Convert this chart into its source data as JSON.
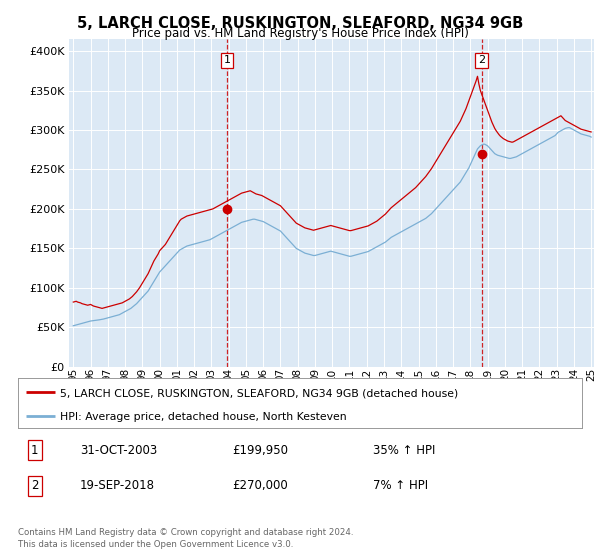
{
  "title": "5, LARCH CLOSE, RUSKINGTON, SLEAFORD, NG34 9GB",
  "subtitle": "Price paid vs. HM Land Registry's House Price Index (HPI)",
  "fig_bg": "#ffffff",
  "plot_bg": "#dce9f5",
  "red_color": "#cc0000",
  "blue_color": "#7bafd4",
  "legend_label1": "5, LARCH CLOSE, RUSKINGTON, SLEAFORD, NG34 9GB (detached house)",
  "legend_label2": "HPI: Average price, detached house, North Kesteven",
  "ann1_date": "31-OCT-2003",
  "ann1_price": "£199,950",
  "ann1_hpi": "35% ↑ HPI",
  "ann2_date": "19-SEP-2018",
  "ann2_price": "£270,000",
  "ann2_hpi": "7% ↑ HPI",
  "footer": "Contains HM Land Registry data © Crown copyright and database right 2024.\nThis data is licensed under the Open Government Licence v3.0.",
  "yticks": [
    0,
    50000,
    100000,
    150000,
    200000,
    250000,
    300000,
    350000,
    400000
  ],
  "ylim": [
    0,
    415000
  ],
  "sale1_month": 107,
  "sale1_y": 199950,
  "sale2_month": 284,
  "sale2_y": 270000,
  "n_months": 361,
  "hpi_monthly": [
    52000,
    52500,
    53000,
    53500,
    54000,
    54500,
    55000,
    55500,
    56000,
    56500,
    57000,
    57500,
    58000,
    58200,
    58500,
    58800,
    59000,
    59200,
    59500,
    59800,
    60000,
    60500,
    61000,
    61500,
    62000,
    62500,
    63000,
    63500,
    64000,
    64500,
    65000,
    65500,
    66000,
    67000,
    68000,
    69000,
    70000,
    71000,
    72000,
    73000,
    74000,
    75500,
    77000,
    78500,
    80000,
    82000,
    84000,
    86000,
    88000,
    90000,
    92000,
    94000,
    96000,
    99000,
    102000,
    105000,
    108000,
    111000,
    114000,
    117000,
    120000,
    122000,
    124000,
    126000,
    128000,
    130000,
    132000,
    134000,
    136000,
    138000,
    140000,
    142000,
    144000,
    146000,
    148000,
    149000,
    150000,
    151000,
    152000,
    153000,
    153500,
    154000,
    154500,
    155000,
    155500,
    156000,
    156500,
    157000,
    157500,
    158000,
    158500,
    159000,
    159500,
    160000,
    160500,
    161000,
    162000,
    163000,
    164000,
    165000,
    166000,
    167000,
    168000,
    169000,
    170000,
    171000,
    172000,
    173000,
    174000,
    175000,
    176000,
    177000,
    178000,
    179000,
    180000,
    181000,
    182000,
    183000,
    183500,
    184000,
    184500,
    185000,
    185500,
    186000,
    186500,
    187000,
    187000,
    186500,
    186000,
    185500,
    185000,
    184500,
    184000,
    183000,
    182000,
    181000,
    180000,
    179000,
    178000,
    177000,
    176000,
    175000,
    174000,
    173000,
    172000,
    170000,
    168000,
    166000,
    164000,
    162000,
    160000,
    158000,
    156000,
    154000,
    152000,
    150000,
    149000,
    148000,
    147000,
    146000,
    145000,
    144000,
    143500,
    143000,
    142500,
    142000,
    141500,
    141000,
    141000,
    141500,
    142000,
    142500,
    143000,
    143500,
    144000,
    144500,
    145000,
    145500,
    146000,
    146500,
    146000,
    145500,
    145000,
    144500,
    144000,
    143500,
    143000,
    142500,
    142000,
    141500,
    141000,
    140500,
    140000,
    140000,
    140500,
    141000,
    141500,
    142000,
    142500,
    143000,
    143500,
    144000,
    144500,
    145000,
    145500,
    146000,
    147000,
    148000,
    149000,
    150000,
    151000,
    152000,
    153000,
    154000,
    155000,
    156000,
    157000,
    158000,
    159500,
    161000,
    162500,
    164000,
    165000,
    166000,
    167000,
    168000,
    169000,
    170000,
    171000,
    172000,
    173000,
    174000,
    175000,
    176000,
    177000,
    178000,
    179000,
    180000,
    181000,
    182000,
    183000,
    184000,
    185000,
    186000,
    187000,
    188000,
    189500,
    191000,
    192500,
    194000,
    196000,
    198000,
    200000,
    202000,
    204000,
    206000,
    208000,
    210000,
    212000,
    214000,
    216000,
    218000,
    220000,
    222000,
    224000,
    226000,
    228000,
    230000,
    232000,
    234000,
    237000,
    240000,
    243000,
    246000,
    249000,
    252000,
    256000,
    260000,
    264000,
    268000,
    272000,
    276000,
    278000,
    280000,
    281000,
    282000,
    282000,
    281000,
    280000,
    278000,
    276000,
    274000,
    272000,
    270000,
    269000,
    268000,
    267500,
    267000,
    266500,
    266000,
    265500,
    265000,
    264500,
    264000,
    264000,
    264500,
    265000,
    265500,
    266000,
    267000,
    268000,
    269000,
    270000,
    271000,
    272000,
    273000,
    274000,
    275000,
    276000,
    277000,
    278000,
    279000,
    280000,
    281000,
    282000,
    283000,
    284000,
    285000,
    286000,
    287000,
    288000,
    289000,
    290000,
    291000,
    292000,
    293000,
    295000,
    297000,
    298000,
    299000,
    300000,
    301000,
    302000,
    302500,
    303000,
    303000,
    302000,
    301000,
    300000,
    299000,
    298000,
    297000,
    296000,
    295000,
    294500,
    294000,
    293500,
    293000,
    292500,
    292000,
    291000
  ],
  "red_monthly": [
    82000,
    82500,
    83000,
    82000,
    81500,
    81000,
    80000,
    79500,
    79000,
    78500,
    78000,
    78500,
    79000,
    78000,
    77000,
    76500,
    76000,
    75500,
    75000,
    74500,
    74000,
    74500,
    75000,
    75500,
    76000,
    76500,
    77000,
    77500,
    78000,
    78500,
    79000,
    79500,
    80000,
    80500,
    81000,
    82000,
    83000,
    84000,
    85000,
    86000,
    87500,
    89000,
    91000,
    93000,
    95000,
    97500,
    100000,
    103000,
    106000,
    109000,
    112000,
    115000,
    118000,
    122000,
    126000,
    130000,
    134000,
    137000,
    140000,
    143000,
    147000,
    149000,
    151000,
    153000,
    155000,
    158000,
    161000,
    164000,
    167000,
    170000,
    173000,
    176000,
    179000,
    182000,
    185000,
    187000,
    188000,
    189000,
    190000,
    191000,
    191500,
    192000,
    192500,
    193000,
    193500,
    194000,
    194500,
    195000,
    195500,
    196000,
    196500,
    197000,
    197500,
    198000,
    198500,
    199000,
    199500,
    200000,
    201000,
    202000,
    203000,
    204000,
    205000,
    206000,
    207000,
    208000,
    209000,
    210000,
    211000,
    212000,
    213000,
    214000,
    215000,
    216000,
    217000,
    218000,
    219000,
    220000,
    220500,
    221000,
    221500,
    222000,
    222500,
    223000,
    222000,
    221000,
    220000,
    219000,
    218500,
    218000,
    217500,
    217000,
    216000,
    215000,
    214000,
    213000,
    212000,
    211000,
    210000,
    209000,
    208000,
    207000,
    206000,
    205000,
    204000,
    202000,
    200000,
    198000,
    196000,
    194000,
    192000,
    190000,
    188000,
    186000,
    184000,
    182000,
    181000,
    180000,
    179000,
    178000,
    177000,
    176000,
    175500,
    175000,
    174500,
    174000,
    173500,
    173000,
    173500,
    174000,
    174500,
    175000,
    175500,
    176000,
    176500,
    177000,
    177500,
    178000,
    178500,
    179000,
    178500,
    178000,
    177500,
    177000,
    176500,
    176000,
    175500,
    175000,
    174500,
    174000,
    173500,
    173000,
    172500,
    172500,
    173000,
    173500,
    174000,
    174500,
    175000,
    175500,
    176000,
    176500,
    177000,
    177500,
    178000,
    178500,
    179500,
    180500,
    181500,
    182500,
    183500,
    184500,
    186000,
    187500,
    189000,
    190500,
    192000,
    193500,
    195500,
    197500,
    199500,
    201500,
    203000,
    204500,
    206000,
    207500,
    209000,
    210500,
    212000,
    213500,
    215000,
    216500,
    218000,
    219500,
    221000,
    222500,
    224000,
    225500,
    227000,
    229000,
    231000,
    233000,
    235000,
    237000,
    239000,
    241000,
    243500,
    246000,
    248500,
    251000,
    254000,
    257000,
    260000,
    263000,
    266000,
    269000,
    272000,
    275000,
    278000,
    281000,
    284000,
    287000,
    290000,
    293000,
    296000,
    299000,
    302000,
    305000,
    308000,
    311000,
    315000,
    319000,
    323000,
    327000,
    332000,
    337000,
    342000,
    347000,
    352000,
    357000,
    362000,
    368000,
    358000,
    350000,
    345000,
    340000,
    335000,
    330000,
    325000,
    320000,
    315000,
    310000,
    306000,
    302000,
    299000,
    296500,
    294000,
    292000,
    290500,
    289000,
    288000,
    287000,
    286000,
    285500,
    285000,
    284500,
    285000,
    286000,
    287000,
    288000,
    289000,
    290000,
    291000,
    292000,
    293000,
    294000,
    295000,
    296000,
    297000,
    298000,
    299000,
    300000,
    301000,
    302000,
    303000,
    304000,
    305000,
    306000,
    307000,
    308000,
    309000,
    310000,
    311000,
    312000,
    313000,
    314000,
    315000,
    316000,
    317000,
    318000,
    316000,
    314000,
    312000,
    311000,
    310000,
    309000,
    308000,
    307000,
    306000,
    305000,
    304000,
    303000,
    302000,
    301000,
    300500,
    300000,
    299500,
    299000,
    298500,
    298000,
    297500
  ],
  "xtick_years": [
    "95",
    "96",
    "97",
    "98",
    "99",
    "00",
    "01",
    "02",
    "03",
    "04",
    "05",
    "06",
    "07",
    "08",
    "09",
    "10",
    "11",
    "12",
    "13",
    "14",
    "15",
    "16",
    "17",
    "18",
    "19",
    "20",
    "21",
    "22",
    "23",
    "24",
    "25"
  ],
  "xtick_positions": [
    0,
    12,
    24,
    36,
    48,
    60,
    72,
    84,
    96,
    108,
    120,
    132,
    144,
    156,
    168,
    180,
    192,
    204,
    216,
    228,
    240,
    252,
    264,
    276,
    288,
    300,
    312,
    324,
    336,
    348,
    360
  ]
}
